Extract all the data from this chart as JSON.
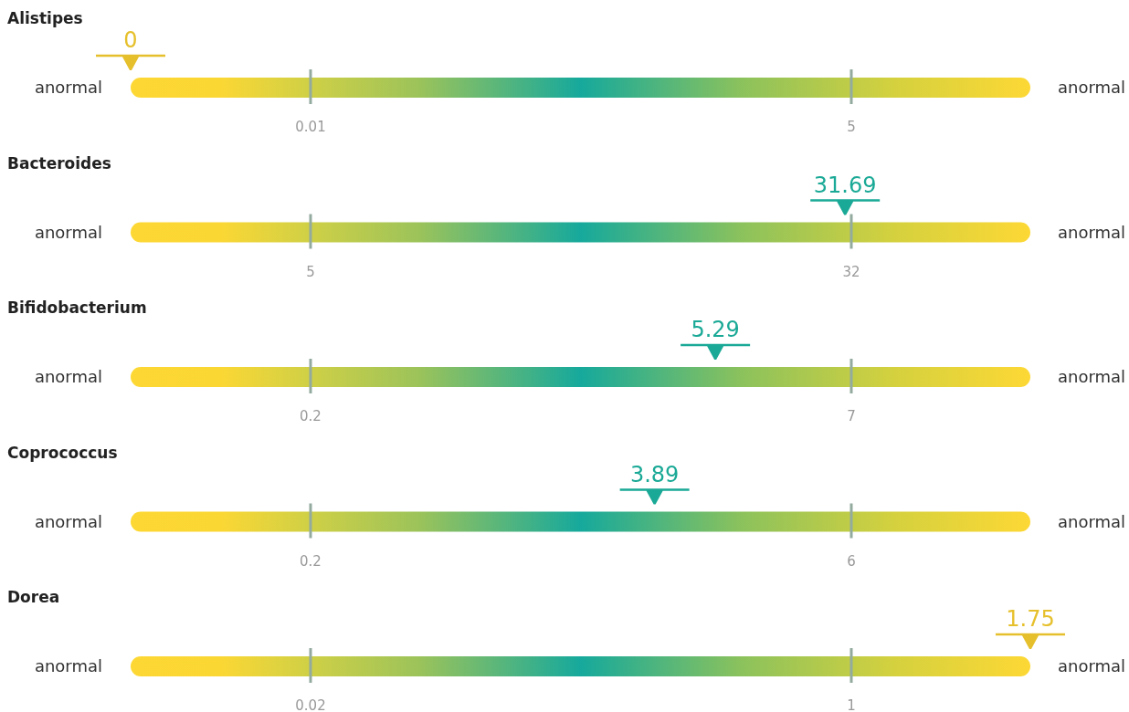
{
  "chart_data": [
    {
      "type": "other",
      "title": "Alistipes",
      "values": [
        0
      ],
      "colors": [
        "#e6c02c"
      ],
      "annotations": [
        "anormal",
        "anormal",
        "0.01",
        "5"
      ],
      "data_labels": true
    },
    {
      "type": "other",
      "title": "Bacteroides",
      "values": [
        31.69
      ],
      "colors": [
        "#1aa996"
      ],
      "annotations": [
        "anormal",
        "anormal",
        "5",
        "32"
      ],
      "data_labels": true
    },
    {
      "type": "other",
      "title": "Bifidobacterium",
      "values": [
        5.29
      ],
      "colors": [
        "#1aa996"
      ],
      "annotations": [
        "anormal",
        "anormal",
        "0.2",
        "7"
      ],
      "data_labels": true
    },
    {
      "type": "other",
      "title": "Coprococcus",
      "values": [
        3.89
      ],
      "colors": [
        "#1aa996"
      ],
      "annotations": [
        "anormal",
        "anormal",
        "0.2",
        "6"
      ],
      "data_labels": true
    },
    {
      "type": "other",
      "title": "Dorea",
      "values": [
        1.75
      ],
      "colors": [
        "#e6c02c"
      ],
      "annotations": [
        "anormal",
        "anormal",
        "0.02",
        "1"
      ],
      "data_labels": true
    }
  ]
}
